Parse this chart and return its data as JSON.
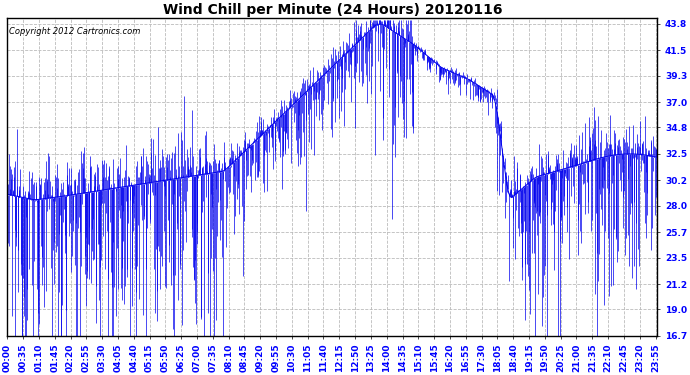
{
  "title": "Wind Chill per Minute (24 Hours) 20120116",
  "copyright_text": "Copyright 2012 Cartronics.com",
  "line_color": "#0000EE",
  "background_color": "#FFFFFF",
  "plot_bg_color": "#FFFFFF",
  "yticks": [
    16.7,
    19.0,
    21.2,
    23.5,
    25.7,
    28.0,
    30.2,
    32.5,
    34.8,
    37.0,
    39.3,
    41.5,
    43.8
  ],
  "ylim_min": 16.7,
  "ylim_max": 43.8,
  "grid_color": "#BBBBBB",
  "title_fontsize": 10,
  "tick_fontsize": 6.5,
  "xtick_step_minutes": 35
}
